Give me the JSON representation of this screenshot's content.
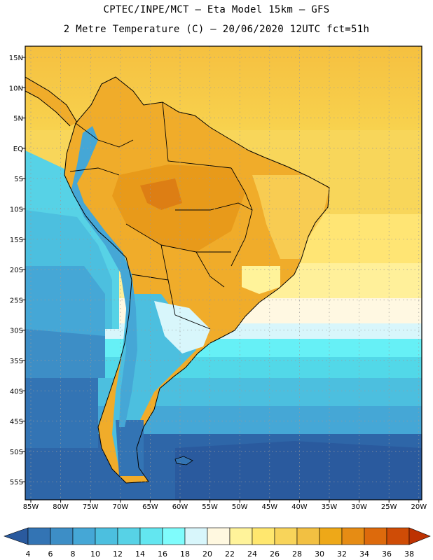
{
  "header": {
    "line1": "CPTEC/INPE/MCT –  Eta Model 15km – GFS",
    "line2": "2 Metre Temperature (C) – 20/06/2020 12UTC fct=51h"
  },
  "map": {
    "region": "South America",
    "lat_labels": [
      "15N",
      "10N",
      "5N",
      "EQ",
      "5S",
      "10S",
      "15S",
      "20S",
      "25S",
      "30S",
      "35S",
      "40S",
      "45S",
      "50S",
      "55S"
    ],
    "lon_labels": [
      "85W",
      "80W",
      "75W",
      "70W",
      "65W",
      "60W",
      "55W",
      "50W",
      "45W",
      "40W",
      "35W",
      "30W",
      "25W",
      "20W"
    ]
  },
  "colorbar": {
    "ticks": [
      "4",
      "6",
      "8",
      "10",
      "12",
      "14",
      "16",
      "18",
      "20",
      "22",
      "24",
      "26",
      "28",
      "30",
      "32",
      "34",
      "36",
      "38"
    ],
    "colors": [
      "#2a5a9e",
      "#3374b4",
      "#3d8ec6",
      "#45a7d6",
      "#4cbfdf",
      "#57d2e6",
      "#63e6f0",
      "#7ffcfc",
      "#d8f6fb",
      "#fff8e0",
      "#fff39a",
      "#ffe76e",
      "#f8d45a",
      "#f2c042",
      "#eea818",
      "#e68c14",
      "#dd6a0c",
      "#cf4c06",
      "#bd3202"
    ]
  }
}
